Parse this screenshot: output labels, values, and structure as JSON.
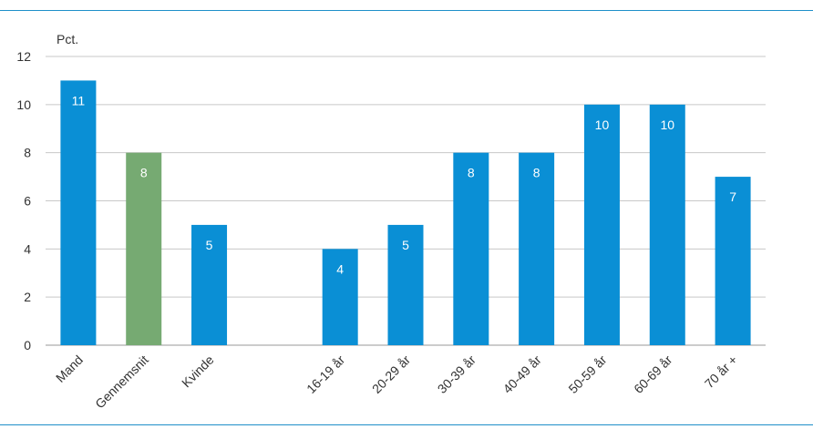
{
  "chart_data": {
    "type": "bar",
    "title": "",
    "ylabel": "Pct.",
    "xlabel": "",
    "ylim": [
      0,
      12
    ],
    "yticks": [
      "0",
      "2",
      "4",
      "6",
      "8",
      "10",
      "12"
    ],
    "grid": true,
    "legend": "none",
    "categories": [
      "Mand",
      "Gennemsnit",
      "Kvinde",
      "",
      "16-19 år",
      "20-29 år",
      "30-39 år",
      "40-49 år",
      "50-59 år",
      "60-69 år",
      "70 år +"
    ],
    "values": [
      11,
      8,
      5,
      null,
      4,
      5,
      8,
      8,
      10,
      10,
      7
    ],
    "bar_colors": [
      "#0a8fd5",
      "#76aa72",
      "#0a8fd5",
      "",
      "#0a8fd5",
      "#0a8fd5",
      "#0a8fd5",
      "#0a8fd5",
      "#0a8fd5",
      "#0a8fd5",
      "#0a8fd5"
    ]
  },
  "colors": {
    "primary_bar": "#0a8fd5",
    "average_bar": "#76aa72",
    "rule": "#1f8fc9",
    "grid": "#c8c8c8"
  }
}
